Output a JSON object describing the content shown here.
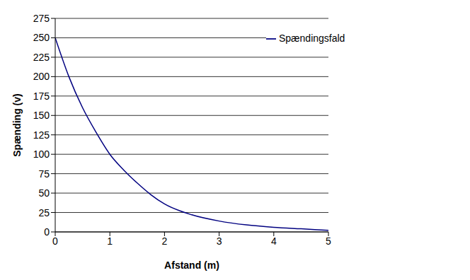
{
  "chart_data": {
    "type": "line",
    "x_label": "Afstand (m)",
    "y_label": "Spænding (v)",
    "x": [
      0,
      0.25,
      0.5,
      0.75,
      1,
      1.25,
      1.5,
      1.75,
      2,
      2.5,
      3,
      3.5,
      4,
      4.5,
      5
    ],
    "series": [
      {
        "name": "Spændingsfald",
        "color": "#000080",
        "values": [
          250,
          200,
          160,
          128,
          100,
          80,
          63,
          48,
          36,
          22,
          14,
          9,
          6,
          4,
          2
        ]
      }
    ],
    "xlim": [
      0,
      5
    ],
    "xticks": [
      0,
      1,
      2,
      3,
      4,
      5
    ],
    "ylim": [
      0,
      275
    ],
    "yticks": [
      0,
      25,
      50,
      75,
      100,
      125,
      150,
      175,
      200,
      225,
      250,
      275
    ],
    "grid": "y",
    "legend": "upper right",
    "marker": "none"
  }
}
